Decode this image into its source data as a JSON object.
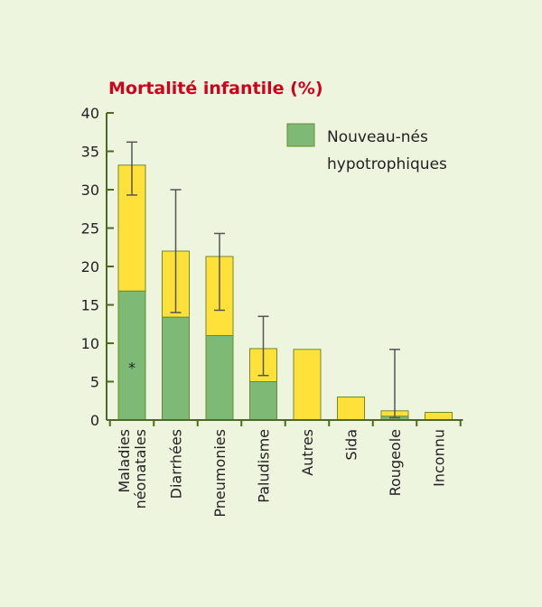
{
  "chart_data": {
    "type": "bar",
    "stacked": true,
    "title": "Mortalité infantile (%)",
    "title_color": "#d0021b",
    "categories": [
      "Maladies néonatales",
      "Diarrhées",
      "Pneumonies",
      "Paludisme",
      "Autres",
      "Sida",
      "Rougeole",
      "Inconnu"
    ],
    "category_lines": [
      [
        "Maladies",
        "néonatales"
      ],
      [
        "Diarrhées"
      ],
      [
        "Pneumonies"
      ],
      [
        "Paludisme"
      ],
      [
        "Autres"
      ],
      [
        "Sida"
      ],
      [
        "Rougeole"
      ],
      [
        "Inconnu"
      ]
    ],
    "series": [
      {
        "name": "Nouveau-nés hypotrophiques",
        "color": "#7dba75",
        "values": [
          16.8,
          13.4,
          11.0,
          5.0,
          0,
          0,
          0.5,
          0
        ]
      },
      {
        "color": "#ffe13a",
        "values": [
          16.4,
          8.6,
          10.3,
          4.3,
          9.2,
          3.0,
          0.7,
          1.0
        ]
      }
    ],
    "totals": [
      33.2,
      22.0,
      21.3,
      9.3,
      9.2,
      3.0,
      1.2,
      1.0
    ],
    "error_bars": [
      {
        "index": 0,
        "low": 29.3,
        "high": 36.2
      },
      {
        "index": 1,
        "low": 14.0,
        "high": 30.0
      },
      {
        "index": 2,
        "low": 14.3,
        "high": 24.3
      },
      {
        "index": 3,
        "low": 5.8,
        "high": 13.5
      },
      {
        "index": 6,
        "low": 0.3,
        "high": 9.2
      }
    ],
    "annotations": [
      {
        "index": 0,
        "y": 7,
        "text": "*"
      }
    ],
    "ylim": [
      0,
      40
    ],
    "yticks": [
      0,
      5,
      10,
      15,
      20,
      25,
      30,
      35,
      40
    ],
    "grid": false,
    "legend_position": "top-right",
    "axis_color": "#4c6b1f"
  }
}
